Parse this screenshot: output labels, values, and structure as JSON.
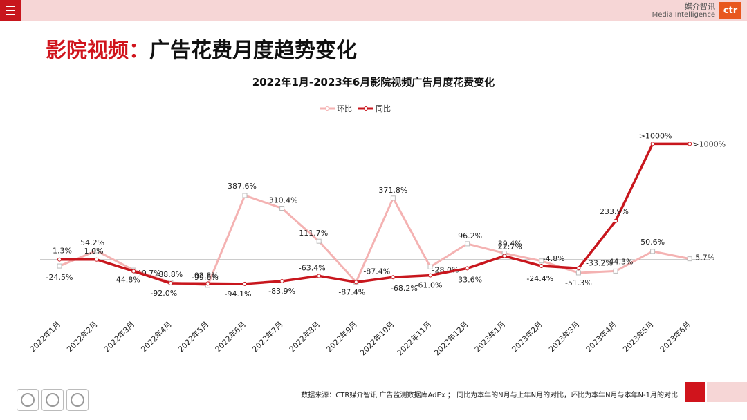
{
  "header": {
    "menu_icon": "hamburger-icon",
    "brand_cn": "媒介智讯",
    "brand_en": "Media Intelligence",
    "logo_text": "ctr"
  },
  "page_title": {
    "accent": "影院视频：",
    "rest": "广告花费月度趋势变化"
  },
  "footer": {
    "source": "数据来源：CTR媒介智讯 广告监测数据库AdEx ； 同比为本年的N月与上年N月的对比，环比为本年N月与本年N-1月的对比"
  },
  "colors": {
    "mom": "#f4b2b2",
    "yoy": "#c8161d",
    "accent": "#d0141c"
  },
  "chart_data": {
    "type": "line",
    "title": "2022年1月-2023年6月影院视频广告月度花费变化",
    "legend_position": "top-center",
    "grid": false,
    "categories": [
      "2022年1月",
      "2022年2月",
      "2022年3月",
      "2022年4月",
      "2022年5月",
      "2022年6月",
      "2022年7月",
      "2022年8月",
      "2022年9月",
      "2022年10月",
      "2022年11月",
      "2022年12月",
      "2023年1月",
      "2023年2月",
      "2023年3月",
      "2023年4月",
      "2023年5月",
      "2023年6月"
    ],
    "series": [
      {
        "name": "环比",
        "color": "#f4b2b2",
        "values": [
          -24.5,
          54.2,
          -40.7,
          -88.8,
          -99.6,
          387.6,
          310.4,
          111.7,
          -87.4,
          371.8,
          -28.0,
          96.2,
          39.4,
          -4.8,
          -51.3,
          -44.3,
          50.6,
          5.7
        ],
        "labels": [
          "-24.5%",
          "54.2%",
          "-40.7%",
          "-88.8%",
          "-99.6%",
          "387.6%",
          "310.4%",
          "111.7%",
          "-87.4%",
          "371.8%",
          "-28.0%",
          "96.2%",
          "39.4%",
          "-4.8%",
          "-51.3%",
          "-44.3%",
          "50.6%",
          "5.7%"
        ]
      },
      {
        "name": "同比",
        "color": "#c8161d",
        "values": [
          1.3,
          1.0,
          -44.8,
          -92.0,
          -92.8,
          -94.1,
          -83.9,
          -63.4,
          -87.4,
          -68.2,
          -61.0,
          -33.6,
          22.7,
          -24.4,
          -33.2,
          233.9,
          1000,
          1000
        ],
        "labels": [
          "1.3%",
          "1.0%",
          "-44.8%",
          "-92.0%",
          "-92.8%",
          "-94.1%",
          "-83.9%",
          "-63.4%",
          "-87.4%",
          "-68.2%",
          "-61.0%",
          "-33.6%",
          "22.7%",
          "-24.4%",
          "-33.2%",
          "233.9%",
          ">1000%",
          ">1000%"
        ]
      }
    ]
  }
}
